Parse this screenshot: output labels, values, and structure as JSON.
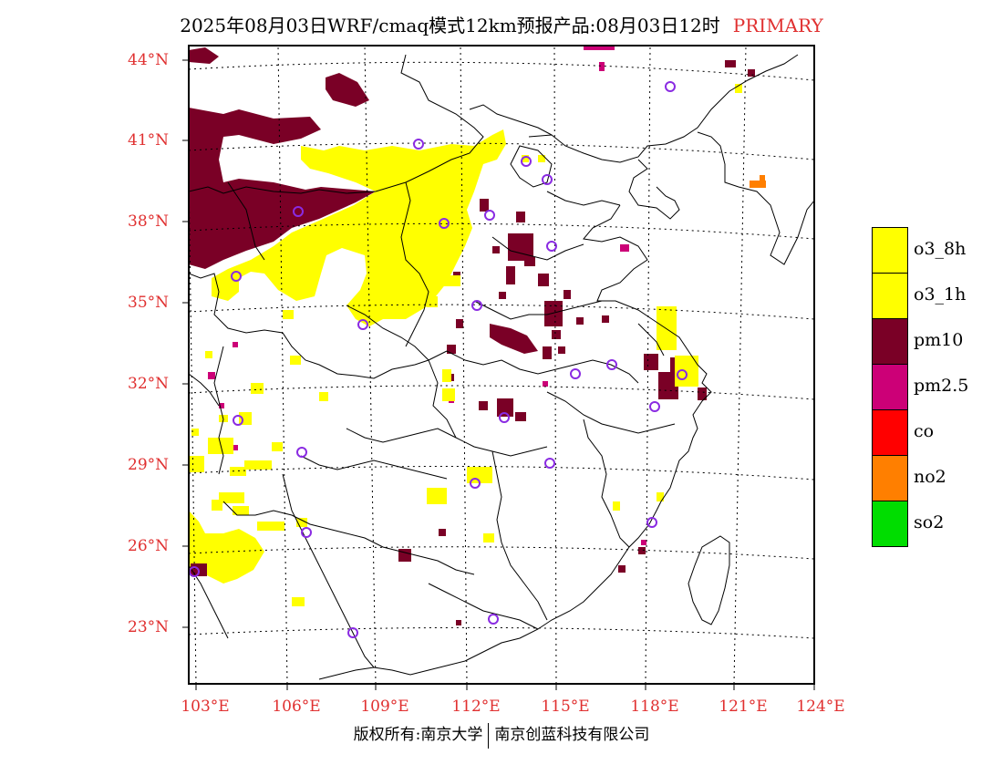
{
  "title": {
    "text": "2025年08月03日WRF/cmaq模式12km预报产品:08月03日12时",
    "tag": "PRIMARY"
  },
  "map": {
    "lat_ticks": [
      "44°N",
      "41°N",
      "38°N",
      "35°N",
      "32°N",
      "29°N",
      "26°N",
      "23°N"
    ],
    "lon_ticks": [
      "103°E",
      "106°E",
      "109°E",
      "112°E",
      "115°E",
      "118°E",
      "121°E",
      "124°E"
    ],
    "layers": [
      "o3_8h",
      "pm10",
      "pm2.5",
      "no2"
    ],
    "station_marker": "circle-icon"
  },
  "legend": [
    {
      "label": "o3_8h",
      "color": "#ffff00"
    },
    {
      "label": "o3_1h",
      "color": "#ffff00"
    },
    {
      "label": "pm10",
      "color": "#7a0026"
    },
    {
      "label": "pm2.5",
      "color": "#cc0077"
    },
    {
      "label": "co",
      "color": "#ff0000"
    },
    {
      "label": "no2",
      "color": "#ff7f00"
    },
    {
      "label": "so2",
      "color": "#00dd00"
    }
  ],
  "colors": {
    "o3": "#ffff00",
    "pm10": "#7a0026",
    "pm25": "#cc0077",
    "no2": "#ff7f00",
    "station": "#8a2be2",
    "axis_label": "#e03030"
  },
  "footer": {
    "left": "版权所有:南京大学",
    "right": "南京创蓝科技有限公司"
  }
}
